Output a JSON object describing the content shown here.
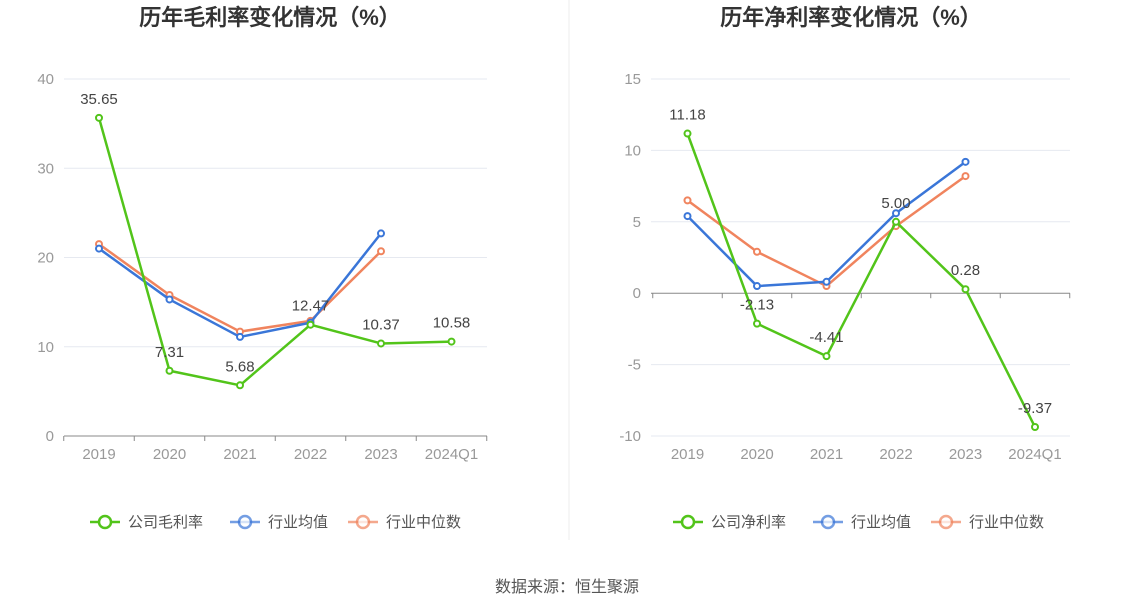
{
  "footer": {
    "source": "数据来源：恒生聚源"
  },
  "chart_data": [
    {
      "type": "line",
      "title": "历年毛利率变化情况（%）",
      "categories": [
        "2019",
        "2020",
        "2021",
        "2022",
        "2023",
        "2024Q1"
      ],
      "ylim": [
        0,
        40
      ],
      "yticks": [
        0,
        10,
        20,
        30,
        40
      ],
      "grid": true,
      "legend_position": "bottom",
      "series": [
        {
          "name": "公司毛利率",
          "color": "#52c41a",
          "labeled": true,
          "values": [
            35.65,
            7.31,
            5.68,
            12.47,
            10.37,
            10.58
          ],
          "labels": [
            "35.65",
            "7.31",
            "5.68",
            "12.47",
            "10.37",
            "10.58"
          ]
        },
        {
          "name": "行业均值",
          "color": "#3a76d8",
          "labeled": false,
          "values": [
            21.0,
            15.3,
            11.1,
            12.7,
            22.7,
            null
          ]
        },
        {
          "name": "行业中位数",
          "color": "#f0845e",
          "labeled": false,
          "values": [
            21.5,
            15.8,
            11.7,
            12.9,
            20.7,
            null
          ]
        }
      ]
    },
    {
      "type": "line",
      "title": "历年净利率变化情况（%）",
      "categories": [
        "2019",
        "2020",
        "2021",
        "2022",
        "2023",
        "2024Q1"
      ],
      "ylim": [
        -10,
        15
      ],
      "yticks": [
        -10,
        -5,
        0,
        5,
        10,
        15
      ],
      "grid": true,
      "legend_position": "bottom",
      "series": [
        {
          "name": "公司净利率",
          "color": "#52c41a",
          "labeled": true,
          "values": [
            11.18,
            -2.13,
            -4.41,
            5.0,
            0.28,
            -9.37
          ],
          "labels": [
            "11.18",
            "-2.13",
            "-4.41",
            "5.00",
            "0.28",
            "-9.37"
          ]
        },
        {
          "name": "行业均值",
          "color": "#3a76d8",
          "labeled": false,
          "values": [
            5.4,
            0.5,
            0.8,
            5.6,
            9.2,
            null
          ]
        },
        {
          "name": "行业中位数",
          "color": "#f0845e",
          "labeled": false,
          "values": [
            6.5,
            2.9,
            0.5,
            4.7,
            8.2,
            null
          ]
        }
      ]
    }
  ]
}
